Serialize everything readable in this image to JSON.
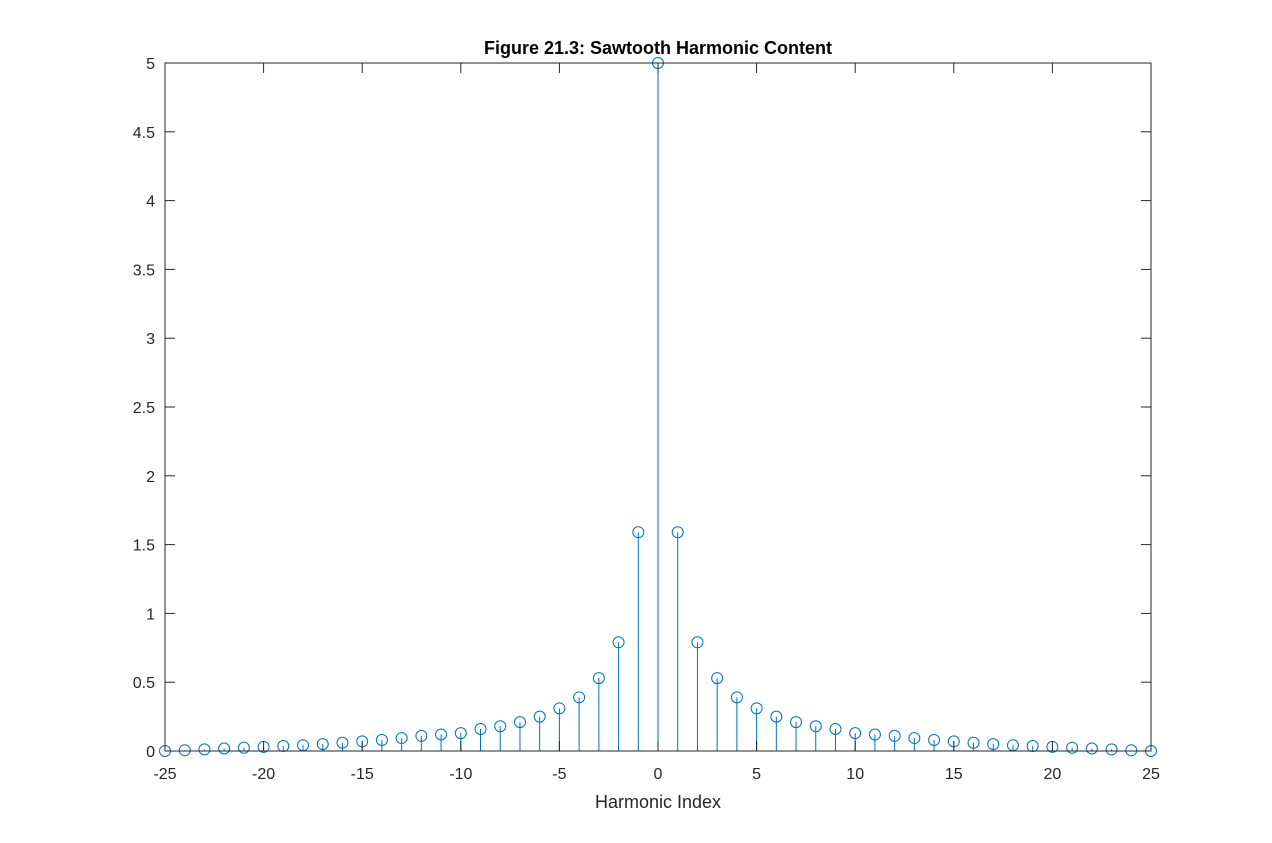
{
  "chart_data": {
    "type": "stem",
    "title": "Figure 21.3: Sawtooth Harmonic Content",
    "xlabel": "Harmonic Index",
    "ylabel": "",
    "xlim": [
      -25,
      25
    ],
    "ylim": [
      0,
      5
    ],
    "xticks": [
      -25,
      -20,
      -15,
      -10,
      -5,
      0,
      5,
      10,
      15,
      20,
      25
    ],
    "yticks": [
      0,
      0.5,
      1,
      1.5,
      2,
      2.5,
      3,
      3.5,
      4,
      4.5,
      5
    ],
    "x": [
      -25,
      -24,
      -23,
      -22,
      -21,
      -20,
      -19,
      -18,
      -17,
      -16,
      -15,
      -14,
      -13,
      -12,
      -11,
      -10,
      -9,
      -8,
      -7,
      -6,
      -5,
      -4,
      -3,
      -2,
      -1,
      0,
      1,
      2,
      3,
      4,
      5,
      6,
      7,
      8,
      9,
      10,
      11,
      12,
      13,
      14,
      15,
      16,
      17,
      18,
      19,
      20,
      21,
      22,
      23,
      24,
      25
    ],
    "values": [
      0.0,
      0.005,
      0.012,
      0.018,
      0.024,
      0.03,
      0.036,
      0.042,
      0.05,
      0.06,
      0.07,
      0.08,
      0.094,
      0.11,
      0.12,
      0.13,
      0.16,
      0.18,
      0.21,
      0.25,
      0.31,
      0.39,
      0.53,
      0.79,
      1.59,
      5.0,
      1.59,
      0.79,
      0.53,
      0.39,
      0.31,
      0.25,
      0.21,
      0.18,
      0.16,
      0.13,
      0.12,
      0.11,
      0.094,
      0.08,
      0.07,
      0.06,
      0.05,
      0.042,
      0.036,
      0.03,
      0.024,
      0.018,
      0.012,
      0.005,
      0.0
    ],
    "marker": "circle",
    "color": "#0072BD",
    "axes_color": "#262626",
    "grid": false,
    "box": true
  }
}
